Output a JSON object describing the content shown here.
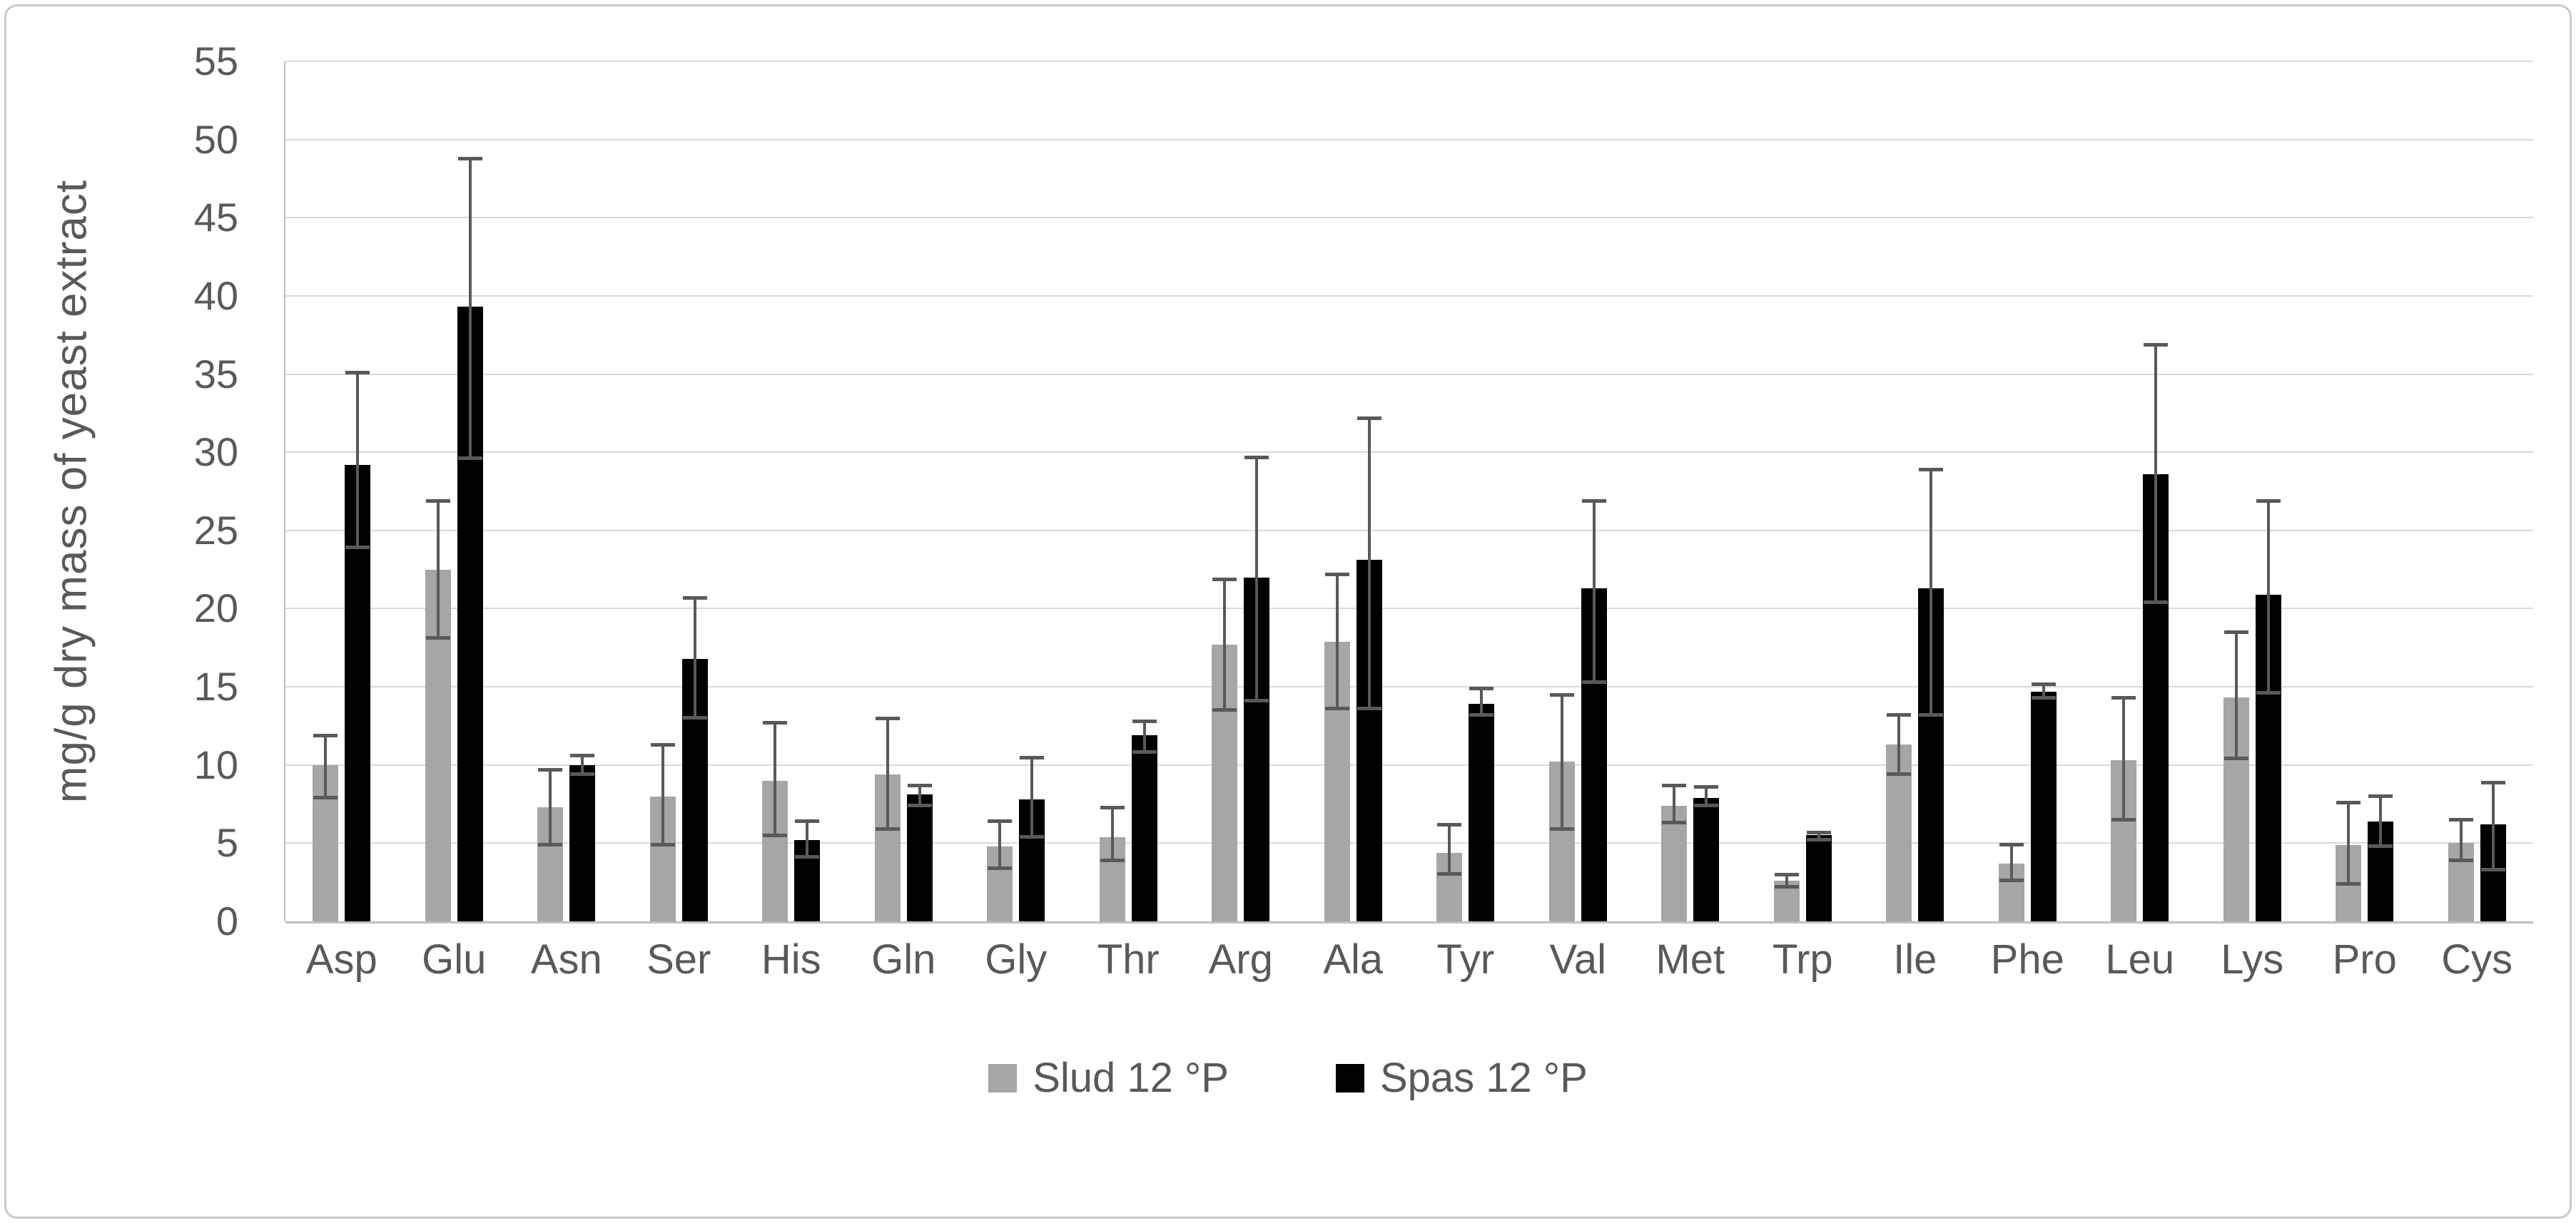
{
  "chart_data": {
    "type": "bar",
    "title": "",
    "xlabel": "",
    "ylabel": "mg/g dry mass of yeast extract",
    "ylim": [
      0,
      55
    ],
    "ytick_step": 5,
    "grid": true,
    "legend_position": "bottom",
    "categories": [
      "Asp",
      "Glu",
      "Asn",
      "Ser",
      "His",
      "Gln",
      "Gly",
      "Thr",
      "Arg",
      "Ala",
      "Tyr",
      "Val",
      "Met",
      "Trp",
      "Ile",
      "Phe",
      "Leu",
      "Lys",
      "Pro",
      "Cys"
    ],
    "series": [
      {
        "name": "Slud 12 °P",
        "color": "#a6a6a6",
        "values": [
          10.0,
          22.5,
          7.3,
          8.0,
          9.0,
          9.4,
          4.8,
          5.4,
          17.7,
          17.9,
          4.4,
          10.2,
          7.4,
          2.6,
          11.3,
          3.7,
          10.3,
          14.3,
          4.9,
          5.0
        ],
        "err_low": [
          7.8,
          18.0,
          4.8,
          4.8,
          5.4,
          5.8,
          3.3,
          3.8,
          13.4,
          13.5,
          2.9,
          5.8,
          6.2,
          2.1,
          9.3,
          2.5,
          6.4,
          10.3,
          2.3,
          3.8
        ],
        "err_high": [
          12.0,
          27.0,
          9.8,
          11.4,
          12.8,
          13.1,
          6.5,
          7.4,
          22.0,
          22.3,
          6.3,
          14.6,
          8.8,
          3.1,
          13.3,
          5.0,
          14.4,
          18.6,
          7.7,
          6.6
        ]
      },
      {
        "name": "Spas 12 °P",
        "color": "#000000",
        "values": [
          29.2,
          39.3,
          10.0,
          16.8,
          5.2,
          8.1,
          7.8,
          11.9,
          22.0,
          23.1,
          13.9,
          21.3,
          7.9,
          5.5,
          21.3,
          14.7,
          28.6,
          20.9,
          6.4,
          6.2
        ],
        "err_low": [
          23.8,
          29.5,
          9.3,
          12.9,
          4.0,
          7.3,
          5.3,
          10.7,
          14.0,
          13.5,
          13.1,
          15.2,
          7.3,
          5.1,
          13.1,
          14.2,
          20.3,
          14.5,
          4.7,
          3.2
        ],
        "err_high": [
          35.2,
          48.9,
          10.7,
          20.8,
          6.5,
          8.8,
          10.6,
          12.9,
          29.8,
          32.3,
          15.0,
          27.0,
          8.7,
          5.8,
          29.0,
          15.3,
          37.0,
          27.0,
          8.1,
          9.0
        ]
      }
    ],
    "error_bar_color": "#595959"
  },
  "styles": {
    "grid_color": "#d9d9d9",
    "axis_color": "#bfbfbf",
    "text_color": "#595959",
    "background": "#ffffff",
    "border_color": "#c9c9c9"
  }
}
